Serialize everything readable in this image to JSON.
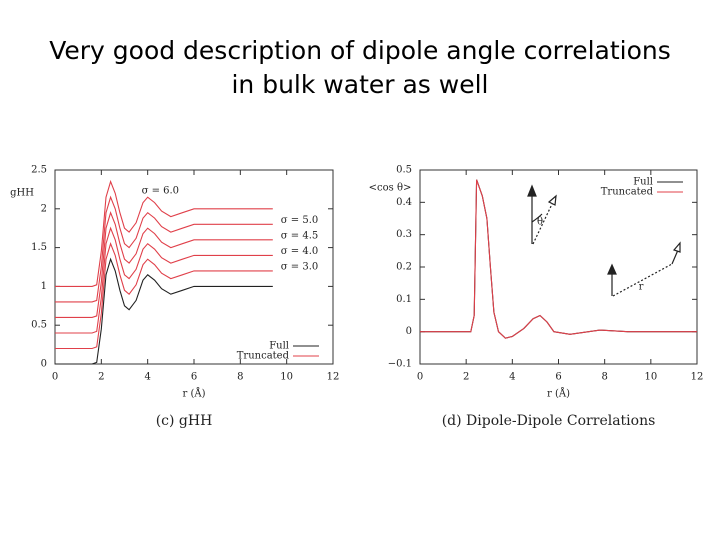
{
  "title_lines": [
    "Very good description of dipole angle correlations",
    "in bulk water as well"
  ],
  "chart_data": [
    {
      "type": "line",
      "caption": "(c) gHH",
      "x_label": "r (Å)",
      "y_label": "gHH",
      "x": [
        0,
        1.6,
        1.8,
        2.0,
        2.2,
        2.4,
        2.6,
        2.8,
        3.0,
        3.2,
        3.5,
        3.8,
        4.0,
        4.3,
        4.6,
        5.0,
        5.5,
        6.0,
        7.0,
        8.0,
        9.4
      ],
      "series": [
        {
          "color": "#222222",
          "values": [
            0,
            0,
            0.02,
            0.45,
            1.15,
            1.35,
            1.2,
            0.95,
            0.75,
            0.7,
            0.82,
            1.08,
            1.15,
            1.08,
            0.97,
            0.9,
            0.95,
            1.0,
            1.0,
            1.0,
            1.0
          ]
        },
        {
          "name": "σ = 3.0",
          "color": "#e0404a",
          "values": [
            0.2,
            0.2,
            0.22,
            0.65,
            1.35,
            1.55,
            1.4,
            1.15,
            0.95,
            0.9,
            1.02,
            1.28,
            1.35,
            1.28,
            1.17,
            1.1,
            1.15,
            1.2,
            1.2,
            1.2,
            1.2
          ]
        },
        {
          "name": "σ = 4.0",
          "color": "#e0404a",
          "values": [
            0.4,
            0.4,
            0.42,
            0.85,
            1.55,
            1.75,
            1.6,
            1.35,
            1.15,
            1.1,
            1.22,
            1.48,
            1.55,
            1.48,
            1.37,
            1.3,
            1.35,
            1.4,
            1.4,
            1.4,
            1.4
          ]
        },
        {
          "name": "σ = 4.5",
          "color": "#e0404a",
          "values": [
            0.6,
            0.6,
            0.62,
            1.05,
            1.75,
            1.95,
            1.8,
            1.55,
            1.35,
            1.3,
            1.42,
            1.68,
            1.75,
            1.68,
            1.57,
            1.5,
            1.55,
            1.6,
            1.6,
            1.6,
            1.6
          ]
        },
        {
          "name": "σ = 5.0",
          "color": "#e0404a",
          "values": [
            0.8,
            0.8,
            0.82,
            1.25,
            1.95,
            2.15,
            2.0,
            1.75,
            1.55,
            1.5,
            1.62,
            1.88,
            1.95,
            1.88,
            1.77,
            1.7,
            1.75,
            1.8,
            1.8,
            1.8,
            1.8
          ]
        },
        {
          "name": "σ = 6.0",
          "color": "#e0404a",
          "values": [
            1.0,
            1.0,
            1.02,
            1.45,
            2.15,
            2.35,
            2.2,
            1.95,
            1.75,
            1.7,
            1.82,
            2.08,
            2.15,
            2.08,
            1.97,
            1.9,
            1.95,
            2.0,
            2.0,
            2.0,
            2.0
          ]
        }
      ],
      "legend": [
        {
          "name": "Full",
          "color": "#222222"
        },
        {
          "name": "Truncated",
          "color": "#e0404a"
        }
      ],
      "legend_loc": "lower right",
      "xlim": [
        0,
        12
      ],
      "xticks": [
        0,
        2,
        4,
        6,
        8,
        10,
        12
      ],
      "ylim": [
        0,
        2.5
      ],
      "yticks": [
        0,
        0.5,
        1,
        1.5,
        2,
        2.5
      ]
    },
    {
      "type": "line",
      "caption": "(d) Dipole-Dipole Correlations",
      "x_label": "r (Å)",
      "y_label": "<cos θ>",
      "x": [
        0,
        2.2,
        2.35,
        2.45,
        2.7,
        2.9,
        3.05,
        3.2,
        3.4,
        3.7,
        4.0,
        4.5,
        4.9,
        5.2,
        5.5,
        5.8,
        6.5,
        7.8,
        9,
        12
      ],
      "series": [
        {
          "name": "Full",
          "color": "#222222",
          "values": [
            0,
            0,
            0.05,
            0.47,
            0.42,
            0.35,
            0.2,
            0.06,
            0.0,
            -0.02,
            -0.015,
            0.01,
            0.04,
            0.05,
            0.03,
            0.0,
            -0.008,
            0.005,
            0,
            0
          ]
        },
        {
          "name": "Truncated",
          "color": "#e0404a",
          "values": [
            0,
            0,
            0.05,
            0.47,
            0.42,
            0.35,
            0.2,
            0.06,
            0.0,
            -0.02,
            -0.015,
            0.01,
            0.04,
            0.05,
            0.03,
            0.0,
            -0.008,
            0.005,
            0,
            0
          ]
        }
      ],
      "legend_loc": "upper right",
      "annotations": [
        "θ",
        "r"
      ],
      "xlim": [
        0,
        12
      ],
      "xticks": [
        0,
        2,
        4,
        6,
        8,
        10,
        12
      ],
      "ylim": [
        -0.1,
        0.5
      ],
      "yticks": [
        {
          "value": -0.1,
          "label": "−0.1"
        },
        0,
        0.1,
        0.2,
        0.3,
        0.4,
        0.5
      ]
    }
  ]
}
